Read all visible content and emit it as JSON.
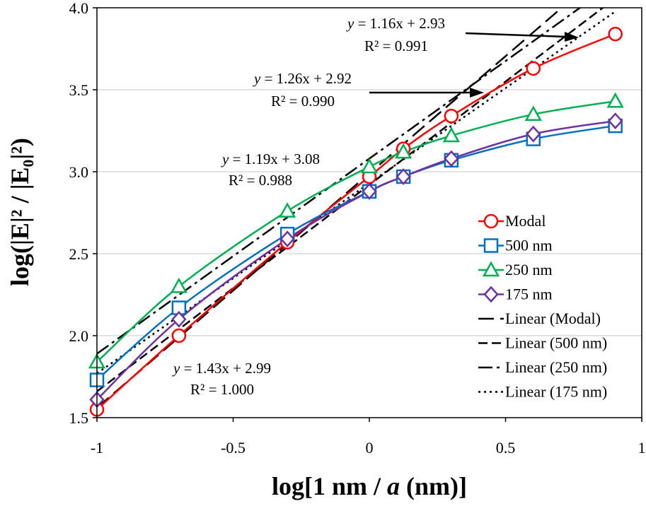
{
  "chart_data": {
    "type": "line",
    "xlabel_parts": [
      "log[1 nm / ",
      "a",
      " (nm)]"
    ],
    "ylabel": "log(|E|² / |E₀|²)",
    "xlim": [
      -1,
      1
    ],
    "ylim": [
      1.5,
      4.0
    ],
    "x_ticks": [
      "-1",
      "-0.5",
      "0",
      "0.5",
      "1"
    ],
    "y_ticks": [
      "1.5",
      "2.0",
      "2.5",
      "3.0",
      "3.5",
      "4.0"
    ],
    "x": [
      -1,
      -0.699,
      -0.301,
      0,
      0.125,
      0.301,
      0.602,
      0.903
    ],
    "series": [
      {
        "name": "Modal",
        "color": "#ff0000",
        "marker": "circle",
        "values": [
          1.55,
          2.0,
          2.57,
          2.97,
          3.14,
          3.34,
          3.63,
          3.84
        ]
      },
      {
        "name": "500 nm",
        "color": "#0070c0",
        "marker": "square",
        "values": [
          1.73,
          2.17,
          2.62,
          2.88,
          2.97,
          3.07,
          3.2,
          3.28
        ]
      },
      {
        "name": "250 nm",
        "color": "#00b050",
        "marker": "triangle",
        "values": [
          1.84,
          2.3,
          2.76,
          3.03,
          3.12,
          3.22,
          3.35,
          3.43
        ]
      },
      {
        "name": "175 nm",
        "color": "#7030a0",
        "marker": "diamond",
        "values": [
          1.61,
          2.1,
          2.59,
          2.88,
          2.97,
          3.08,
          3.23,
          3.31
        ]
      }
    ],
    "trendlines": [
      {
        "name": "Linear (Modal)",
        "slope": 1.43,
        "intercept": 2.99,
        "dash": "22,9"
      },
      {
        "name": "Linear (500 nm)",
        "slope": 1.26,
        "intercept": 2.92,
        "dash": "13,6"
      },
      {
        "name": "Linear (250 nm)",
        "slope": 1.19,
        "intercept": 3.08,
        "dash": "20,6,4,6"
      },
      {
        "name": "Linear (175 nm)",
        "slope": 1.16,
        "intercept": 2.93,
        "dash": "3,5"
      }
    ],
    "annotations": [
      {
        "eq_prefix": "y",
        "eq_rest": " = 1.16x + 2.93",
        "r2": "R² = 0.991"
      },
      {
        "eq_prefix": "y",
        "eq_rest": " = 1.26x + 2.92",
        "r2": "R² = 0.990"
      },
      {
        "eq_prefix": "y",
        "eq_rest": " = 1.19x + 3.08",
        "r2": "R² = 0.988"
      },
      {
        "eq_prefix": "y",
        "eq_rest": " = 1.43x + 2.99",
        "r2": "R² = 1.000"
      }
    ],
    "legend_position": "bottom-right"
  }
}
